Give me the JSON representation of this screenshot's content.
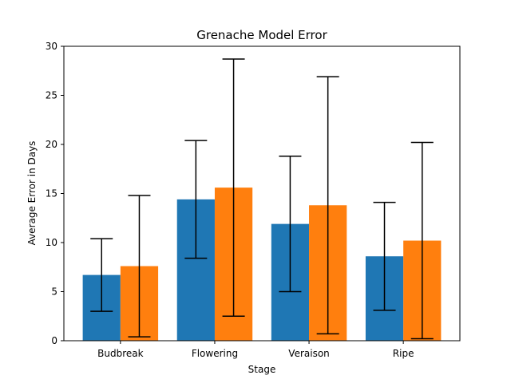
{
  "chart_data": {
    "type": "bar",
    "title": "Grenache Model Error",
    "xlabel": "Stage",
    "ylabel": "Average Error in Days",
    "categories": [
      "Budbreak",
      "Flowering",
      "Veraison",
      "Ripe"
    ],
    "ylim": [
      0,
      30
    ],
    "yticks": [
      0,
      5,
      10,
      15,
      20,
      25,
      30
    ],
    "grid": false,
    "legend": "none",
    "series": [
      {
        "color": "#1f77b4",
        "values": [
          6.7,
          14.4,
          11.9,
          8.6
        ],
        "error_low": [
          3.0,
          8.4,
          5.0,
          3.1
        ],
        "error_high": [
          10.4,
          20.4,
          18.8,
          14.1
        ]
      },
      {
        "color": "#ff7f0e",
        "values": [
          7.6,
          15.6,
          13.8,
          10.2
        ],
        "error_low": [
          0.4,
          2.5,
          0.7,
          0.2
        ],
        "error_high": [
          14.8,
          28.7,
          26.9,
          20.2
        ]
      }
    ]
  }
}
